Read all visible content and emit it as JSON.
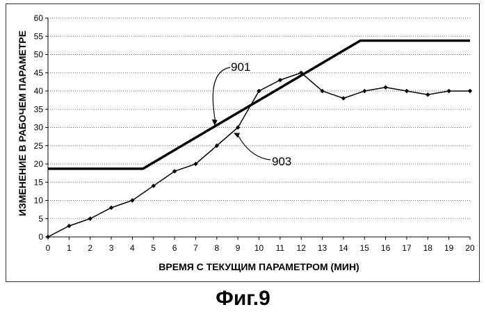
{
  "figure_caption": "Фиг.9",
  "chart_data": {
    "type": "line",
    "title": "",
    "xlabel": "ВРЕМЯ С ТЕКУЩИМ ПАРАМЕТРОМ (МИН)",
    "ylabel": "ИЗМЕНЕНИЕ В РАБОЧЕМ ПАРАМЕТРЕ",
    "xlim": [
      0,
      20
    ],
    "ylim": [
      0,
      60
    ],
    "x_ticks": [
      0,
      1,
      2,
      3,
      4,
      5,
      6,
      7,
      8,
      9,
      10,
      11,
      12,
      13,
      14,
      15,
      16,
      17,
      18,
      19,
      20
    ],
    "y_ticks": [
      0,
      5,
      10,
      15,
      20,
      25,
      30,
      35,
      40,
      45,
      50,
      55,
      60
    ],
    "grid": "horizontal dotted",
    "legend": "none",
    "series": [
      {
        "x": [
          0,
          4.5,
          14.8,
          20
        ],
        "y": [
          18.7,
          18.7,
          53.8,
          53.8
        ],
        "markers": false,
        "color": "#000000"
      },
      {
        "x": [
          0,
          1,
          2,
          3,
          4,
          5,
          6,
          7,
          8,
          9,
          10,
          11,
          12,
          13,
          14,
          15,
          16,
          17,
          18,
          19,
          20
        ],
        "y": [
          0,
          3,
          5,
          8,
          10,
          14,
          18,
          20,
          25,
          30,
          40,
          43,
          45,
          40,
          38,
          40,
          41,
          40,
          39,
          40,
          40
        ],
        "markers": true,
        "color": "#000000"
      }
    ],
    "annotations": [
      {
        "text": "901",
        "points_to": [
          7.9,
          30.5
        ]
      },
      {
        "text": "903",
        "points_to": [
          8.8,
          28.5
        ]
      }
    ]
  }
}
